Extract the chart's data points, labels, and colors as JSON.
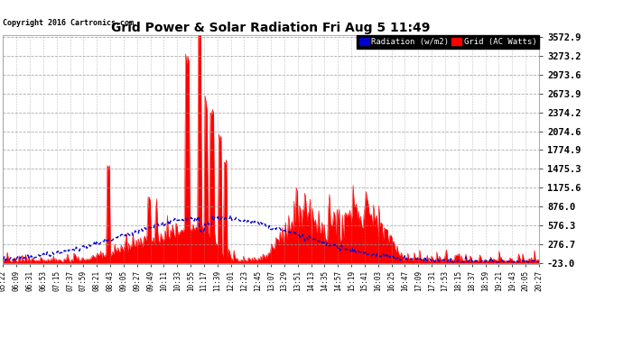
{
  "title": "Grid Power & Solar Radiation Fri Aug 5 11:49",
  "copyright": "Copyright 2016 Cartronics.com",
  "legend_radiation": "Radiation (w/m2)",
  "legend_grid": "Grid (AC Watts)",
  "y_ticks": [
    -23.0,
    276.7,
    576.3,
    876.0,
    1175.6,
    1475.3,
    1774.9,
    2074.6,
    2374.2,
    2673.9,
    2973.6,
    3273.2,
    3572.9
  ],
  "y_min": -23.0,
  "y_max": 3572.9,
  "background_color": "#ffffff",
  "plot_bg_color": "#ffffff",
  "grid_color": "#aaaaaa",
  "red_color": "#ff0000",
  "blue_color": "#0000cc",
  "x_labels": [
    "05:22",
    "06:09",
    "06:31",
    "06:53",
    "07:15",
    "07:37",
    "07:59",
    "08:21",
    "08:43",
    "09:05",
    "09:27",
    "09:49",
    "10:11",
    "10:33",
    "10:55",
    "11:17",
    "11:39",
    "12:01",
    "12:23",
    "12:45",
    "13:07",
    "13:29",
    "13:51",
    "14:13",
    "14:35",
    "14:57",
    "15:19",
    "15:41",
    "16:03",
    "16:25",
    "16:47",
    "17:09",
    "17:31",
    "17:53",
    "18:15",
    "18:37",
    "18:59",
    "19:21",
    "19:43",
    "20:05",
    "20:27"
  ],
  "n_points": 500
}
